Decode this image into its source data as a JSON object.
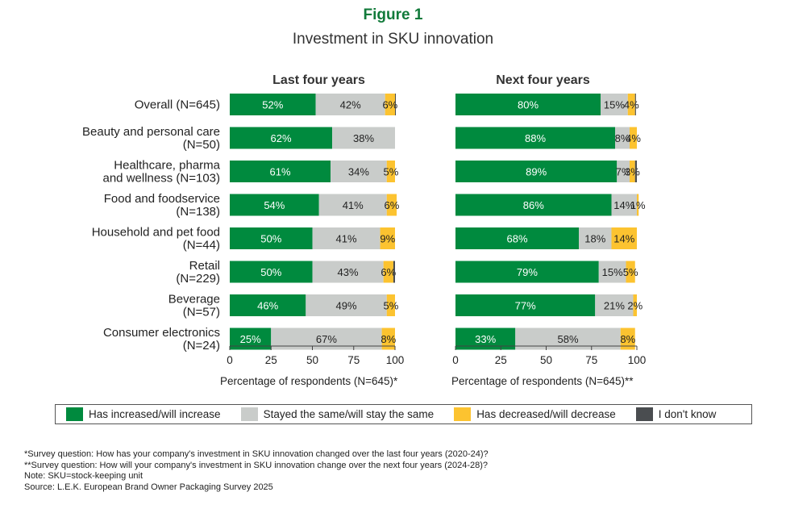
{
  "title": "Figure 1",
  "subtitle": "Investment in SKU innovation",
  "colors": {
    "increase": "#008a3e",
    "same": "#c9ccca",
    "decrease": "#fcc330",
    "dont_know": "#4a4d50",
    "title": "#117a3a"
  },
  "legend": {
    "items": [
      {
        "label": "Has increased/will increase",
        "color": "#008a3e"
      },
      {
        "label": "Stayed the same/will stay the same",
        "color": "#c9ccca"
      },
      {
        "label": "Has decreased/will decrease",
        "color": "#fcc330"
      },
      {
        "label": "I don't know",
        "color": "#4a4d50"
      }
    ]
  },
  "notes": [
    "*Survey question: How has your company's investment in SKU innovation changed over the last four years (2020-24)?",
    "**Survey question: How will your company's investment in SKU innovation change over the next four years (2024-28)?",
    "Note: SKU=stock-keeping unit",
    "Source: L.E.K. European Brand Owner Packaging Survey 2025"
  ],
  "chart_data": [
    {
      "type": "bar",
      "orientation": "horizontal",
      "stacked": true,
      "title": "Last four years",
      "xlabel": "Percentage of respondents (N=645)*",
      "xlim": [
        0,
        100
      ],
      "xticks": [
        0,
        25,
        50,
        75,
        100
      ],
      "categories": [
        [
          "Overall (N=645)"
        ],
        [
          "Beauty and personal care",
          "(N=50)"
        ],
        [
          "Healthcare, pharma",
          "and wellness (N=103)"
        ],
        [
          "Food and foodservice",
          "(N=138)"
        ],
        [
          "Household and pet food",
          "(N=44)"
        ],
        [
          "Retail",
          "(N=229)"
        ],
        [
          "Beverage",
          "(N=57)"
        ],
        [
          "Consumer electronics",
          "(N=24)"
        ]
      ],
      "series": [
        {
          "name": "Has increased/will increase",
          "values": [
            52,
            62,
            61,
            54,
            50,
            50,
            46,
            25
          ],
          "labels": [
            "52%",
            "62%",
            "61%",
            "54%",
            "50%",
            "50%",
            "46%",
            "25%"
          ]
        },
        {
          "name": "Stayed the same/will stay the same",
          "values": [
            42,
            38,
            34,
            41,
            41,
            43,
            49,
            67
          ],
          "labels": [
            "42%",
            "38%",
            "34%",
            "41%",
            "41%",
            "43%",
            "49%",
            "67%"
          ]
        },
        {
          "name": "Has decreased/will decrease",
          "values": [
            6,
            0,
            5,
            6,
            9,
            6,
            5,
            8
          ],
          "labels": [
            "6%",
            "",
            "5%",
            "6%",
            "9%",
            "6%",
            "5%",
            "8%"
          ]
        },
        {
          "name": "I don't know",
          "values": [
            0.5,
            0,
            0,
            0,
            0,
            1,
            0,
            0
          ],
          "labels": [
            "",
            "",
            "",
            "",
            "",
            "",
            "",
            ""
          ]
        }
      ]
    },
    {
      "type": "bar",
      "orientation": "horizontal",
      "stacked": true,
      "title": "Next four years",
      "xlabel": "Percentage of respondents (N=645)**",
      "xlim": [
        0,
        100
      ],
      "xticks": [
        0,
        25,
        50,
        75,
        100
      ],
      "categories": [
        [
          "Overall (N=645)"
        ],
        [
          "Beauty and personal care",
          "(N=50)"
        ],
        [
          "Healthcare, pharma",
          "and wellness (N=103)"
        ],
        [
          "Food and foodservice",
          "(N=138)"
        ],
        [
          "Household and pet food",
          "(N=44)"
        ],
        [
          "Retail",
          "(N=229)"
        ],
        [
          "Beverage",
          "(N=57)"
        ],
        [
          "Consumer electronics",
          "(N=24)"
        ]
      ],
      "series": [
        {
          "name": "Has increased/will increase",
          "values": [
            80,
            88,
            89,
            86,
            68,
            79,
            77,
            33
          ],
          "labels": [
            "80%",
            "88%",
            "89%",
            "86%",
            "68%",
            "79%",
            "77%",
            "33%"
          ]
        },
        {
          "name": "Stayed the same/will stay the same",
          "values": [
            15,
            8,
            7,
            14,
            18,
            15,
            21,
            58
          ],
          "labels": [
            "15%",
            "8%",
            "7%",
            "14%",
            "18%",
            "15%",
            "21%",
            "58%"
          ]
        },
        {
          "name": "Has decreased/will decrease",
          "values": [
            4,
            4,
            3,
            1,
            14,
            5,
            2,
            8
          ],
          "labels": [
            "4%",
            "4%",
            "3%",
            "1%",
            "14%",
            "5%",
            "2%",
            "8%"
          ]
        },
        {
          "name": "I don't know",
          "values": [
            0.5,
            0,
            1,
            0,
            0,
            0,
            0,
            0
          ],
          "labels": [
            "",
            "",
            "",
            "",
            "",
            "",
            "",
            ""
          ]
        }
      ]
    }
  ]
}
